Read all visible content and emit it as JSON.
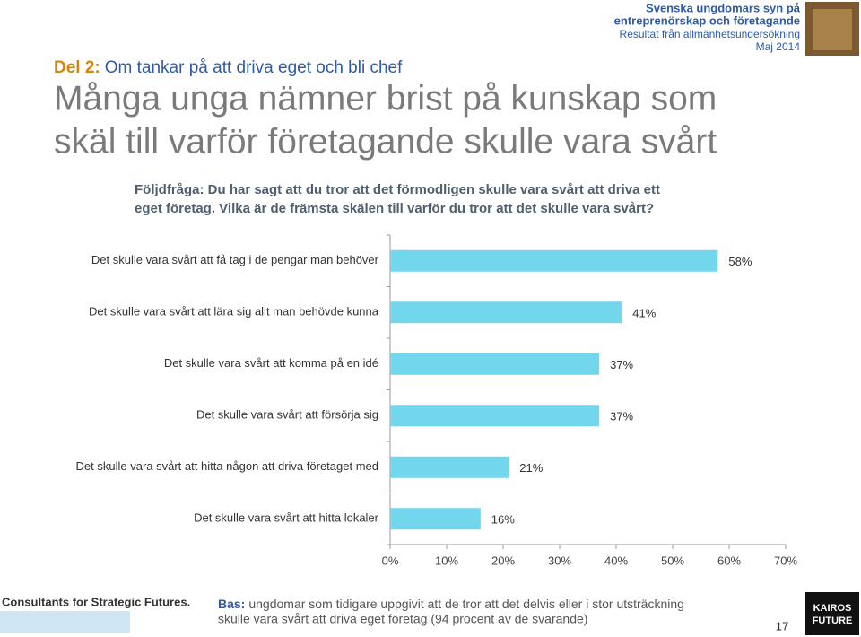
{
  "header": {
    "lines": [
      "Svenska ungdomars syn på",
      "entreprenörskap och företagande",
      "Resultat från allmänhetsundersökning",
      "Maj 2014"
    ]
  },
  "section": {
    "label": "Del 2:",
    "text": "Om tankar på att driva eget och bli chef"
  },
  "title": [
    "Många unga nämner brist på kunskap som",
    "skäl till varför företagande skulle vara svårt"
  ],
  "question": [
    "Följdfråga: Du har sagt att du tror att det förmodligen skulle vara svårt att driva ett",
    "eget företag. Vilka är de främsta skälen till varför du tror att det skulle vara svårt?"
  ],
  "chart_data": {
    "type": "hbar",
    "categories": [
      "Det skulle vara svårt att få tag i de pengar man behöver",
      "Det skulle vara svårt att lära sig allt man behövde kunna",
      "Det skulle vara svårt att komma på en idé",
      "Det skulle vara svårt att försörja sig",
      "Det skulle vara svårt att hitta någon att driva företaget med",
      "Det skulle vara svårt att hitta lokaler"
    ],
    "values": [
      58,
      41,
      37,
      37,
      21,
      16
    ],
    "value_labels": [
      "58%",
      "41%",
      "37%",
      "37%",
      "21%",
      "16%"
    ],
    "color": "#72d6ec",
    "xlim": [
      0,
      70
    ],
    "xticks": [
      {
        "value": 0,
        "label": "0%"
      },
      {
        "value": 10,
        "label": "10%"
      },
      {
        "value": 20,
        "label": "20%"
      },
      {
        "value": 30,
        "label": "30%"
      },
      {
        "value": 40,
        "label": "40%"
      },
      {
        "value": 50,
        "label": "50%"
      },
      {
        "value": 60,
        "label": "60%"
      },
      {
        "value": 70,
        "label": "70%"
      }
    ]
  },
  "footer": {
    "tagline": "Consultants for Strategic Futures.",
    "base_label": "Bas:",
    "base_text": [
      "ungdomar som tidigare uppgivit att de tror att det delvis eller i stor utsträckning",
      "skulle vara svårt att driva eget företag (94 procent av de svarande)"
    ],
    "page": "17",
    "logo": [
      "KAIROS",
      "FUTURE"
    ]
  }
}
